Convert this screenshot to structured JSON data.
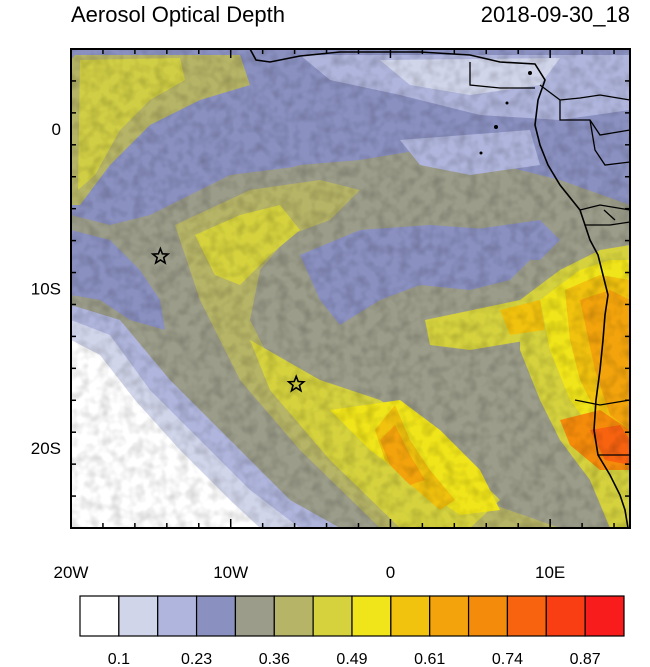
{
  "title_left": "Aerosol Optical Depth",
  "title_right": "2018-09-30_18",
  "map": {
    "lon_range": [
      -20,
      15
    ],
    "lat_range": [
      -25,
      5
    ],
    "x_ticks": [
      {
        "lon": -20,
        "label": "20W"
      },
      {
        "lon": -10,
        "label": "10W"
      },
      {
        "lon": 0,
        "label": "0"
      },
      {
        "lon": 10,
        "label": "10E"
      }
    ],
    "y_ticks": [
      {
        "lat": 0,
        "label": "0"
      },
      {
        "lat": -10,
        "label": "10S"
      },
      {
        "lat": -20,
        "label": "20S"
      }
    ],
    "stars": [
      {
        "name": "site-star-north",
        "lon": -14.4,
        "lat": -8.0
      },
      {
        "name": "site-star-south",
        "lon": -5.9,
        "lat": -16.0
      }
    ]
  },
  "colorbar": {
    "colors": [
      "#ffffff",
      "#d1d5ea",
      "#afb5dc",
      "#8a90c0",
      "#9c9c8a",
      "#b6b466",
      "#d5d23e",
      "#f0e41a",
      "#f1c20e",
      "#f3a40c",
      "#f58b0b",
      "#f86310",
      "#f93e14",
      "#f81c1c"
    ],
    "labels": [
      "0.1",
      "0.23",
      "0.36",
      "0.49",
      "0.61",
      "0.74",
      "0.87"
    ]
  }
}
